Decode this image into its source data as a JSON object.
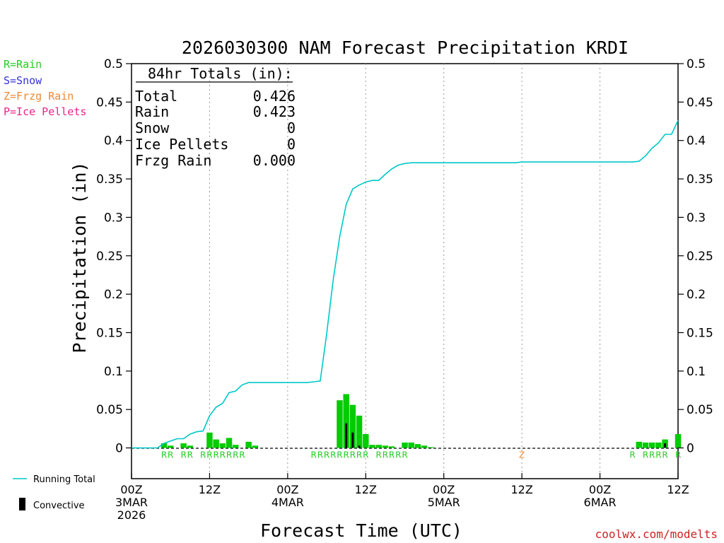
{
  "chart_data": {
    "type": "bar",
    "title": "2026030300 NAM Forecast Precipitation KRDI",
    "xlabel": "Forecast Time (UTC)",
    "ylabel": "Precipitation (in)",
    "ylim": [
      -0.04,
      0.5
    ],
    "xlim": [
      0,
      84
    ],
    "y_ticks": [
      "0",
      "0.05",
      "0.1",
      "0.15",
      "0.2",
      "0.25",
      "0.3",
      "0.35",
      "0.4",
      "0.45",
      "0.5"
    ],
    "x_ticks": [
      {
        "hour": 0,
        "line1": "00Z",
        "line2": "3MAR",
        "line3": "2026"
      },
      {
        "hour": 12,
        "line1": "12Z",
        "line2": "",
        "line3": ""
      },
      {
        "hour": 24,
        "line1": "00Z",
        "line2": "4MAR",
        "line3": ""
      },
      {
        "hour": 36,
        "line1": "12Z",
        "line2": "",
        "line3": ""
      },
      {
        "hour": 48,
        "line1": "00Z",
        "line2": "5MAR",
        "line3": ""
      },
      {
        "hour": 60,
        "line1": "12Z",
        "line2": "",
        "line3": ""
      },
      {
        "hour": 72,
        "line1": "00Z",
        "line2": "6MAR",
        "line3": ""
      },
      {
        "hour": 84,
        "line1": "12Z",
        "line2": "",
        "line3": ""
      }
    ],
    "grid": "vertical dotted at 12-hour ticks",
    "bar_hours": [
      0,
      1,
      2,
      3,
      4,
      5,
      6,
      7,
      8,
      9,
      10,
      11,
      12,
      13,
      14,
      15,
      16,
      17,
      18,
      19,
      20,
      21,
      22,
      23,
      24,
      25,
      26,
      27,
      28,
      29,
      30,
      31,
      32,
      33,
      34,
      35,
      36,
      37,
      38,
      39,
      40,
      41,
      42,
      43,
      44,
      45,
      46,
      47,
      48,
      49,
      50,
      51,
      52,
      53,
      54,
      55,
      56,
      57,
      58,
      59,
      60,
      61,
      62,
      63,
      64,
      65,
      66,
      67,
      68,
      69,
      70,
      71,
      72,
      73,
      74,
      75,
      76,
      77,
      78,
      79,
      80,
      81,
      82,
      83,
      84
    ],
    "series": [
      {
        "name": "Total",
        "color": "#00cc00",
        "values": [
          0,
          0,
          0,
          0,
          0,
          0.006,
          0.003,
          0,
          0.006,
          0.003,
          0,
          0,
          0.02,
          0.011,
          0.006,
          0.013,
          0.004,
          0,
          0.008,
          0.003,
          0,
          0,
          0,
          0,
          0,
          0,
          0,
          0,
          0,
          0,
          0,
          0,
          0.062,
          0.07,
          0.056,
          0.042,
          0.018,
          0.004,
          0.004,
          0.003,
          0.002,
          0,
          0.007,
          0.007,
          0.005,
          0.003,
          0.001,
          0,
          0,
          0,
          0,
          0,
          0,
          0,
          0,
          0,
          0,
          0,
          0,
          0,
          0,
          0,
          0,
          0,
          0,
          0,
          0,
          0,
          0,
          0,
          0,
          0,
          0,
          0,
          0,
          0,
          0,
          0,
          0.008,
          0.007,
          0.007,
          0.007,
          0.011,
          0,
          0.018
        ]
      },
      {
        "name": "Convective",
        "color": "#000000",
        "values": [
          0,
          0,
          0,
          0,
          0,
          0,
          0,
          0,
          0,
          0,
          0,
          0,
          0,
          0,
          0,
          0,
          0,
          0,
          0,
          0,
          0,
          0,
          0,
          0,
          0,
          0,
          0,
          0,
          0,
          0,
          0,
          0,
          0,
          0.032,
          0.02,
          0.003,
          0,
          0,
          0,
          0,
          0,
          0,
          0,
          0,
          0,
          0,
          0,
          0,
          0,
          0,
          0,
          0,
          0,
          0,
          0,
          0,
          0,
          0,
          0,
          0,
          0,
          0,
          0,
          0,
          0,
          0,
          0,
          0,
          0,
          0,
          0,
          0,
          0,
          0,
          0,
          0,
          0,
          0,
          0,
          0,
          0,
          0,
          0.006,
          0,
          0
        ]
      },
      {
        "name": "Running Total",
        "color": "#00c8c8",
        "x": [
          0,
          3,
          4,
          5,
          6,
          7,
          8,
          9,
          10,
          11,
          12,
          13,
          14,
          15,
          16,
          17,
          18,
          19,
          20,
          21,
          22,
          23,
          24,
          25,
          26,
          27,
          28,
          29,
          30,
          31,
          32,
          33,
          34,
          35,
          36,
          37,
          38,
          39,
          40,
          41,
          42,
          43,
          44,
          45,
          46,
          47,
          48,
          49,
          50,
          51,
          52,
          53,
          54,
          55,
          56,
          57,
          58,
          59,
          60,
          61,
          62,
          63,
          64,
          65,
          66,
          67,
          68,
          69,
          70,
          71,
          72,
          73,
          74,
          75,
          76,
          77,
          78,
          79,
          80,
          81,
          82,
          83,
          84
        ],
        "values": [
          0,
          0,
          0,
          0.006,
          0.009,
          0.012,
          0.012,
          0.018,
          0.021,
          0.022,
          0.042,
          0.053,
          0.058,
          0.072,
          0.074,
          0.082,
          0.085,
          0.085,
          0.085,
          0.085,
          0.085,
          0.085,
          0.085,
          0.085,
          0.085,
          0.085,
          0.086,
          0.087,
          0.149,
          0.219,
          0.275,
          0.317,
          0.337,
          0.342,
          0.346,
          0.348,
          0.348,
          0.356,
          0.363,
          0.368,
          0.37,
          0.371,
          0.371,
          0.371,
          0.371,
          0.371,
          0.371,
          0.371,
          0.371,
          0.371,
          0.371,
          0.371,
          0.371,
          0.371,
          0.371,
          0.371,
          0.371,
          0.371,
          0.372,
          0.372,
          0.372,
          0.372,
          0.372,
          0.372,
          0.372,
          0.372,
          0.372,
          0.372,
          0.372,
          0.372,
          0.372,
          0.372,
          0.372,
          0.372,
          0.372,
          0.372,
          0.373,
          0.38,
          0.39,
          0.397,
          0.408,
          0.408,
          0.426
        ]
      }
    ],
    "ptype_labels": [
      {
        "hour": 5,
        "text": "R",
        "type": "rain"
      },
      {
        "hour": 6,
        "text": "R",
        "type": "rain"
      },
      {
        "hour": 8,
        "text": "R",
        "type": "rain"
      },
      {
        "hour": 9,
        "text": "R",
        "type": "rain"
      },
      {
        "hour": 11,
        "text": "R",
        "type": "rain"
      },
      {
        "hour": 12,
        "text": "R",
        "type": "rain"
      },
      {
        "hour": 13,
        "text": "R",
        "type": "rain"
      },
      {
        "hour": 14,
        "text": "R",
        "type": "rain"
      },
      {
        "hour": 15,
        "text": "R",
        "type": "rain"
      },
      {
        "hour": 16,
        "text": "R",
        "type": "rain"
      },
      {
        "hour": 17,
        "text": "R",
        "type": "rain"
      },
      {
        "hour": 28,
        "text": "R",
        "type": "rain"
      },
      {
        "hour": 29,
        "text": "R",
        "type": "rain"
      },
      {
        "hour": 30,
        "text": "R",
        "type": "rain"
      },
      {
        "hour": 31,
        "text": "R",
        "type": "rain"
      },
      {
        "hour": 32,
        "text": "R",
        "type": "rain"
      },
      {
        "hour": 33,
        "text": "R",
        "type": "rain"
      },
      {
        "hour": 34,
        "text": "R",
        "type": "rain"
      },
      {
        "hour": 35,
        "text": "R",
        "type": "rain"
      },
      {
        "hour": 36,
        "text": "R",
        "type": "rain"
      },
      {
        "hour": 38,
        "text": "R",
        "type": "rain"
      },
      {
        "hour": 39,
        "text": "R",
        "type": "rain"
      },
      {
        "hour": 40,
        "text": "R",
        "type": "rain"
      },
      {
        "hour": 41,
        "text": "R",
        "type": "rain"
      },
      {
        "hour": 42,
        "text": "R",
        "type": "rain"
      },
      {
        "hour": 60,
        "text": "Z",
        "type": "frzg"
      },
      {
        "hour": 77,
        "text": "R",
        "type": "rain"
      },
      {
        "hour": 79,
        "text": "R",
        "type": "rain"
      },
      {
        "hour": 80,
        "text": "R",
        "type": "rain"
      },
      {
        "hour": 81,
        "text": "R",
        "type": "rain"
      },
      {
        "hour": 82,
        "text": "R",
        "type": "rain"
      },
      {
        "hour": 84,
        "text": "R",
        "type": "rain"
      }
    ],
    "totals_box": {
      "heading": "84hr Totals (in):",
      "rows": [
        {
          "label": "Total",
          "value": "0.426"
        },
        {
          "label": "Rain",
          "value": "0.423"
        },
        {
          "label": "Snow",
          "value": "0"
        },
        {
          "label": "Ice Pellets",
          "value": "0"
        },
        {
          "label": "Frzg Rain",
          "value": "0.000"
        }
      ]
    },
    "legend_ptype": [
      {
        "text": "R=Rain",
        "color": "#22cc22"
      },
      {
        "text": "S=Snow",
        "color": "#3333dd"
      },
      {
        "text": "Z=Frzg Rain",
        "color": "#ee8833"
      },
      {
        "text": "P=Ice Pellets",
        "color": "#ee2288"
      }
    ],
    "legend_bottom": [
      {
        "text": "Running Total",
        "kind": "line",
        "color": "#00c8c8"
      },
      {
        "text": "Convective",
        "kind": "bar",
        "color": "#000000"
      }
    ],
    "ptype_colors": {
      "rain": "#22cc22",
      "frzg": "#ee8833"
    },
    "credit": "coolwx.com/modelts"
  }
}
